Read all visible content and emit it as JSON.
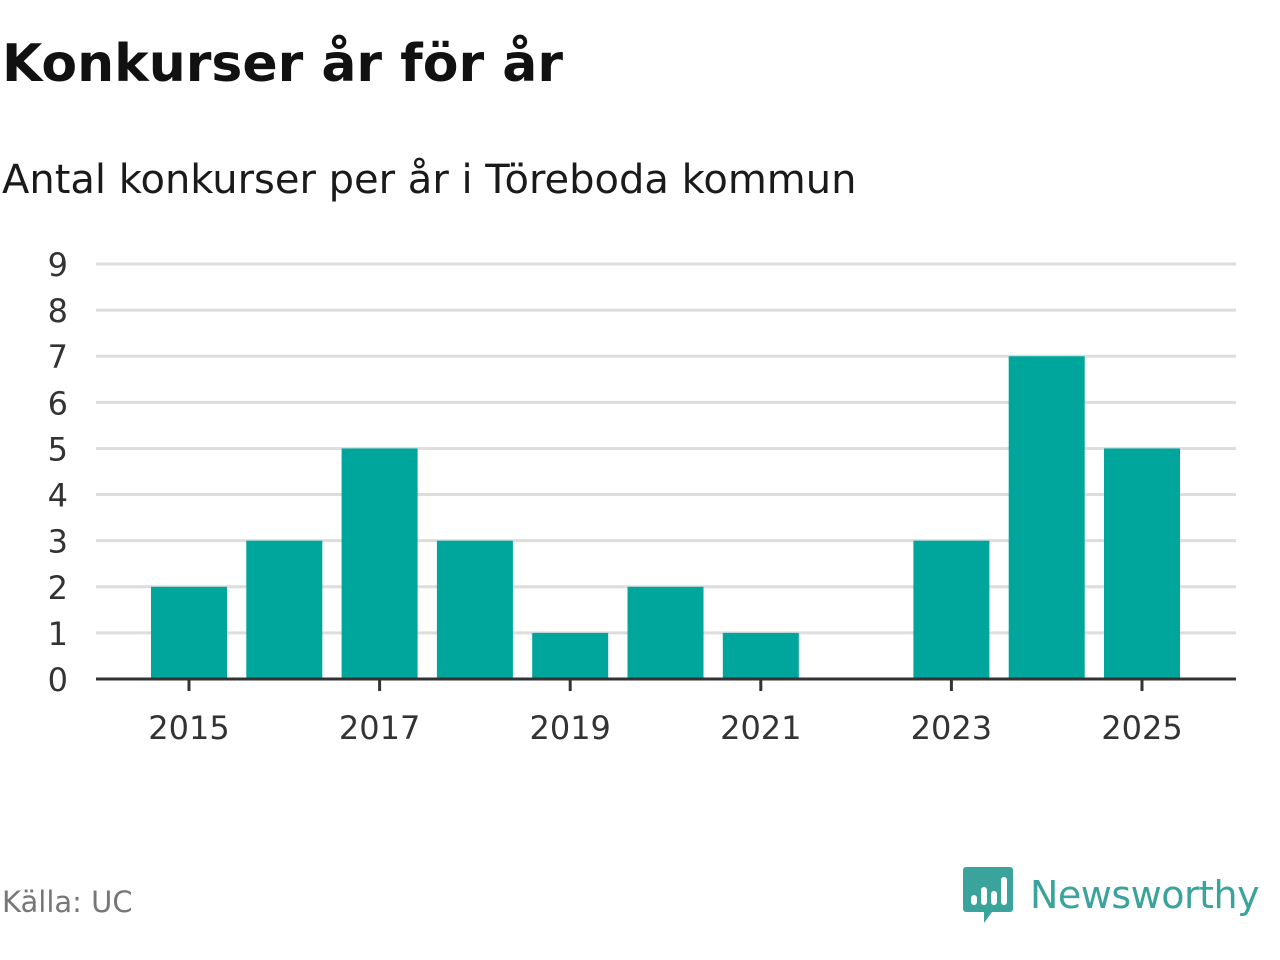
{
  "title": "Konkurser år för år",
  "subtitle": "Antal konkurser per år i Töreboda kommun",
  "source": "Källa: UC",
  "brand": {
    "name": "Newsworthy",
    "icon": "newsworthy-logo-icon",
    "color": "#3aa39c"
  },
  "colors": {
    "bar": "#00a59b",
    "grid": "#dddddd",
    "axis": "#333333"
  },
  "chart_data": {
    "type": "bar",
    "categories": [
      "2015",
      "2016",
      "2017",
      "2018",
      "2019",
      "2020",
      "2021",
      "2022",
      "2023",
      "2024",
      "2025"
    ],
    "values": [
      2,
      3,
      5,
      3,
      1,
      2,
      1,
      0,
      3,
      7,
      5
    ],
    "tick_labels_x": [
      "2015",
      "2017",
      "2019",
      "2021",
      "2023",
      "2025"
    ],
    "tick_labels_y": [
      "0",
      "1",
      "2",
      "3",
      "4",
      "5",
      "6",
      "7",
      "8",
      "9"
    ],
    "ylim": [
      0,
      9
    ],
    "xlabel": "",
    "ylabel": "",
    "grid": true,
    "legend": false
  }
}
